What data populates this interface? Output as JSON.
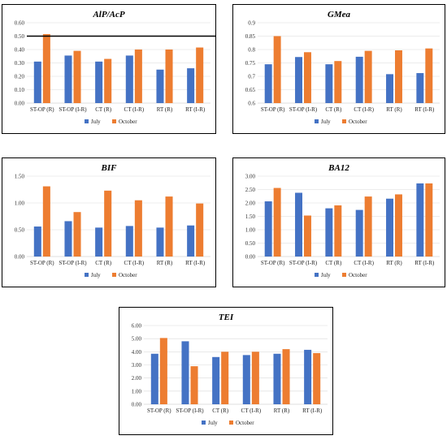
{
  "colors": {
    "july": "#4472C4",
    "october": "#ED7D31",
    "grid": "#D9D9D9",
    "axis": "#BFBFBF"
  },
  "legend": {
    "july": "July",
    "october": "October"
  },
  "chart_data": [
    {
      "type": "bar",
      "title": "AlP/AcP",
      "categories": [
        "ST-OP (R)",
        "ST-OP (I-R)",
        "CT (R)",
        "CT (I-R)",
        "RT (R)",
        "RT (I-R)"
      ],
      "series": [
        {
          "name": "July",
          "values": [
            0.31,
            0.355,
            0.31,
            0.355,
            0.25,
            0.26
          ]
        },
        {
          "name": "October",
          "values": [
            0.515,
            0.39,
            0.33,
            0.4,
            0.4,
            0.415
          ]
        }
      ],
      "yticks": [
        "0.00",
        "0.10",
        "0.20",
        "0.30",
        "0.40",
        "0.50",
        "0.60"
      ],
      "ylim": [
        0,
        0.6
      ],
      "reference_line": 0.5,
      "legend_position": "bottom"
    },
    {
      "type": "bar",
      "title": "GMea",
      "categories": [
        "ST-OP (R)",
        "ST-OP (I-R)",
        "CT (R)",
        "CT (I-R)",
        "RT (R)",
        "RT (I-R)"
      ],
      "series": [
        {
          "name": "July",
          "values": [
            0.745,
            0.772,
            0.745,
            0.773,
            0.708,
            0.712
          ]
        },
        {
          "name": "October",
          "values": [
            0.85,
            0.79,
            0.757,
            0.795,
            0.797,
            0.804
          ]
        }
      ],
      "yticks": [
        "0.6",
        "0.65",
        "0.7",
        "0.75",
        "0.8",
        "0.85",
        "0.9"
      ],
      "ylim": [
        0.6,
        0.9
      ],
      "legend_position": "bottom"
    },
    {
      "type": "bar",
      "title": "BIF",
      "categories": [
        "ST-OP (R)",
        "ST-OP (I-R)",
        "CT (R)",
        "CT (I-R)",
        "RT (R)",
        "RT (I-R)"
      ],
      "series": [
        {
          "name": "July",
          "values": [
            0.56,
            0.66,
            0.54,
            0.57,
            0.54,
            0.58
          ]
        },
        {
          "name": "October",
          "values": [
            1.31,
            0.83,
            1.23,
            1.05,
            1.12,
            0.99
          ]
        }
      ],
      "yticks": [
        "0.00",
        "0.50",
        "1.00",
        "1.50"
      ],
      "ylim": [
        0,
        1.5
      ],
      "legend_position": "bottom"
    },
    {
      "type": "bar",
      "title": "BA12",
      "categories": [
        "ST-OP (R)",
        "ST-OP (I-R)",
        "CT (R)",
        "CT (I-R)",
        "RT (R)",
        "RT (I-R)"
      ],
      "series": [
        {
          "name": "July",
          "values": [
            2.06,
            2.38,
            1.8,
            1.74,
            2.16,
            2.73
          ]
        },
        {
          "name": "October",
          "values": [
            2.56,
            1.53,
            1.91,
            2.24,
            2.32,
            2.73
          ]
        }
      ],
      "yticks": [
        "0.00",
        "0.50",
        "1.00",
        "1.50",
        "2.00",
        "2.50",
        "3.00"
      ],
      "ylim": [
        0,
        3.0
      ],
      "legend_position": "bottom"
    },
    {
      "type": "bar",
      "title": "TEI",
      "categories": [
        "ST-OP (R)",
        "ST-OP (I-R)",
        "CT (R)",
        "CT (I-R)",
        "RT (R)",
        "RT (I-R)"
      ],
      "series": [
        {
          "name": "July",
          "values": [
            3.85,
            4.8,
            3.6,
            3.75,
            3.85,
            4.15
          ]
        },
        {
          "name": "October",
          "values": [
            5.05,
            2.9,
            4.0,
            4.0,
            4.2,
            3.9
          ]
        }
      ],
      "yticks": [
        "0.00",
        "1.00",
        "2.00",
        "3.00",
        "4.00",
        "5.00",
        "6.00"
      ],
      "ylim": [
        0,
        6.0
      ],
      "legend_position": "bottom"
    }
  ]
}
